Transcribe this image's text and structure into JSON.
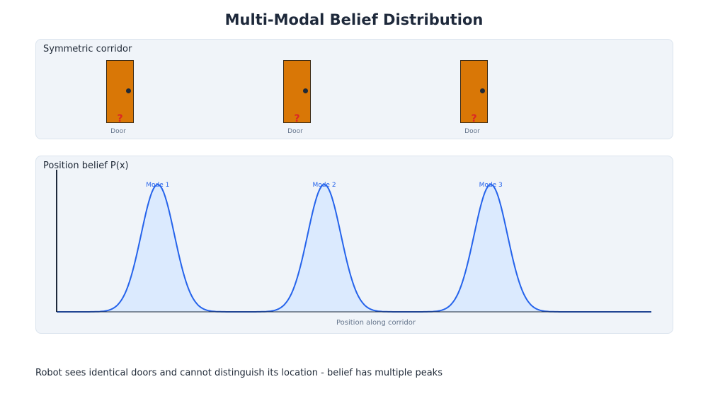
{
  "title": "Multi-Modal Belief Distribution",
  "corridor": {
    "title": "Symmetric corridor",
    "doors": [
      {
        "label": "Door",
        "mark": "?"
      },
      {
        "label": "Door",
        "mark": "?"
      },
      {
        "label": "Door",
        "mark": "?"
      }
    ],
    "door_color": "#d97706"
  },
  "belief": {
    "title": "Position belief P(x)",
    "xlabel": "Position along corridor"
  },
  "chart_data": {
    "type": "area",
    "title": "Position belief P(x)",
    "xlabel": "Position along corridor",
    "ylabel": "P(x)",
    "xlim": [
      0,
      100
    ],
    "ylim": [
      0,
      1
    ],
    "modes": [
      {
        "label": "Mode 1",
        "mean": 17,
        "sigma": 2.8,
        "peak": 1
      },
      {
        "label": "Mode 2",
        "mean": 45,
        "sigma": 2.8,
        "peak": 1
      },
      {
        "label": "Mode 3",
        "mean": 73,
        "sigma": 2.8,
        "peak": 1
      }
    ],
    "line_color": "#2563eb",
    "fill_color": "#dbeafe"
  },
  "caption": "Robot sees identical doors and cannot distinguish its location - belief has multiple peaks"
}
